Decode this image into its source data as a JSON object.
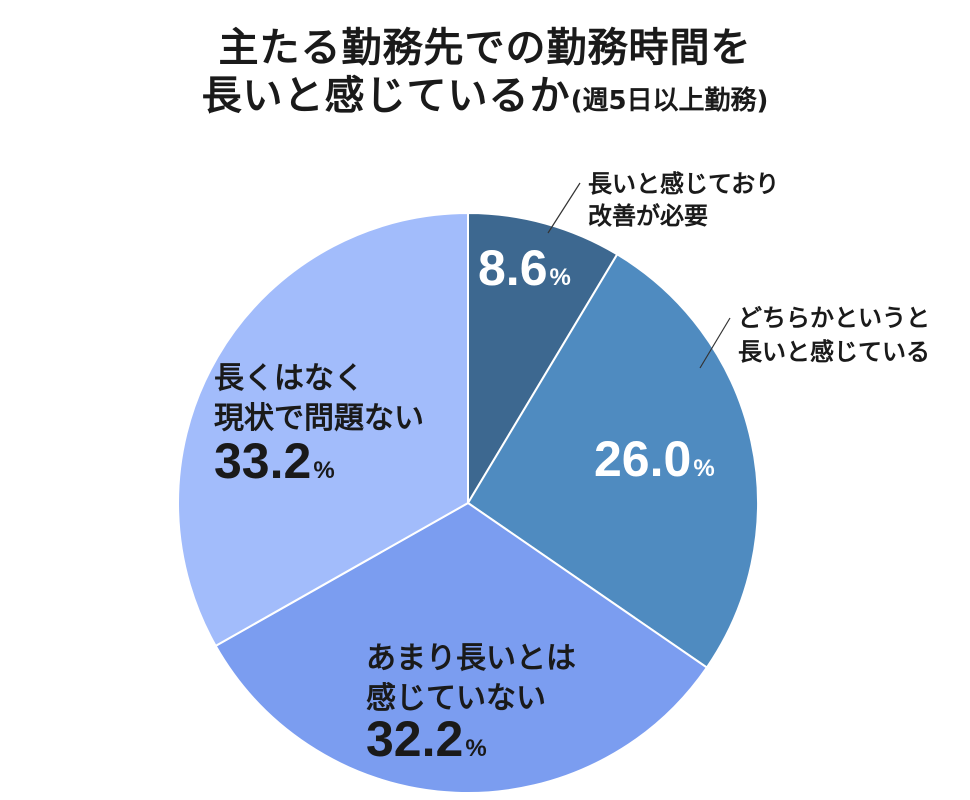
{
  "chart_data": {
    "type": "pie",
    "title_line1": "主たる勤務先での勤務時間を",
    "title_line2": "長いと感じているか",
    "title_note": "(週5日以上勤務)",
    "unit": "%",
    "slices": [
      {
        "label_lines": [
          "長いと感じており",
          "改善が必要"
        ],
        "value": 8.6,
        "value_text": "8.6",
        "color": "#3d6890",
        "text_color": "#ffffff"
      },
      {
        "label_lines": [
          "どちらかというと",
          "長いと感じている"
        ],
        "value": 26.0,
        "value_text": "26.0",
        "color": "#4f8bc0",
        "text_color": "#ffffff"
      },
      {
        "label_lines": [
          "あまり長いとは",
          "感じていない"
        ],
        "value": 32.2,
        "value_text": "32.2",
        "color": "#7b9df0",
        "text_color": "#1a1a1a"
      },
      {
        "label_lines": [
          "長くはなく",
          "現状で問題ない"
        ],
        "value": 33.2,
        "value_text": "33.2",
        "color": "#a2bcfb",
        "text_color": "#1a1a1a"
      }
    ]
  }
}
